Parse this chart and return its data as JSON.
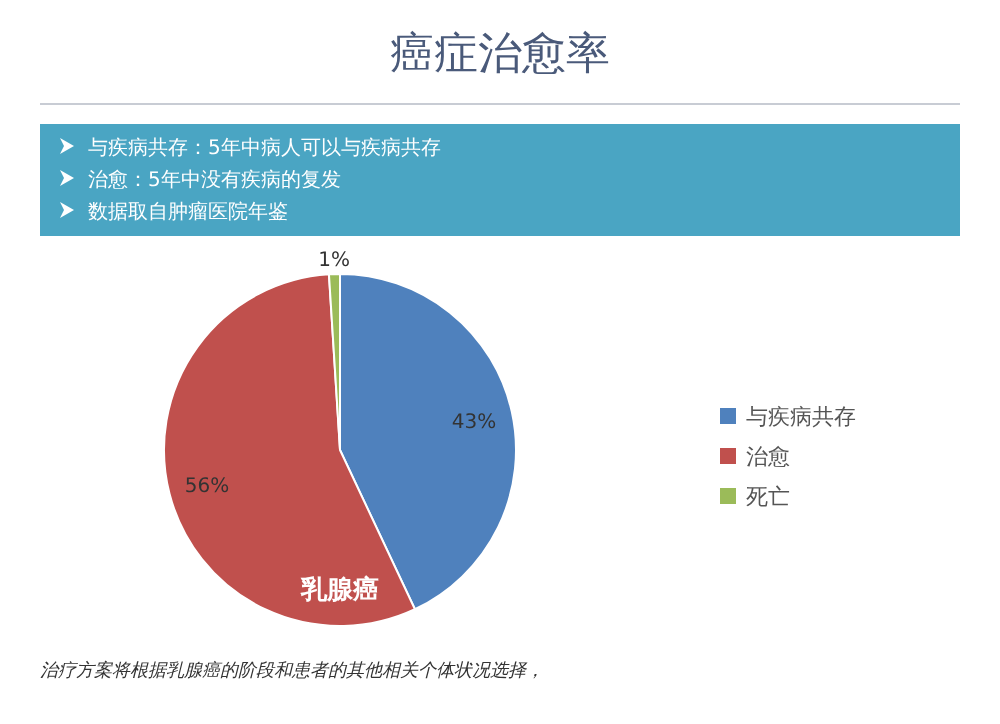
{
  "chart_data": {
    "type": "pie",
    "title": "癌症治愈率",
    "categories": [
      "与疾病共存",
      "治愈",
      "死亡"
    ],
    "values": [
      43,
      56,
      1
    ],
    "value_labels": [
      "43%",
      "56%",
      "1%"
    ],
    "colors": [
      "#4f81bd",
      "#c0504d",
      "#9bbb59"
    ],
    "legend": "right",
    "annotations": [
      "与疾病共存：5年中病人可以与疾病共存",
      "治愈：5年中没有疾病的复发",
      "数据取自肿瘤医院年鉴",
      "乳腺癌",
      "治疗方案将根据乳腺癌的阶段和患者的其他相关个体状况选择，"
    ]
  }
}
